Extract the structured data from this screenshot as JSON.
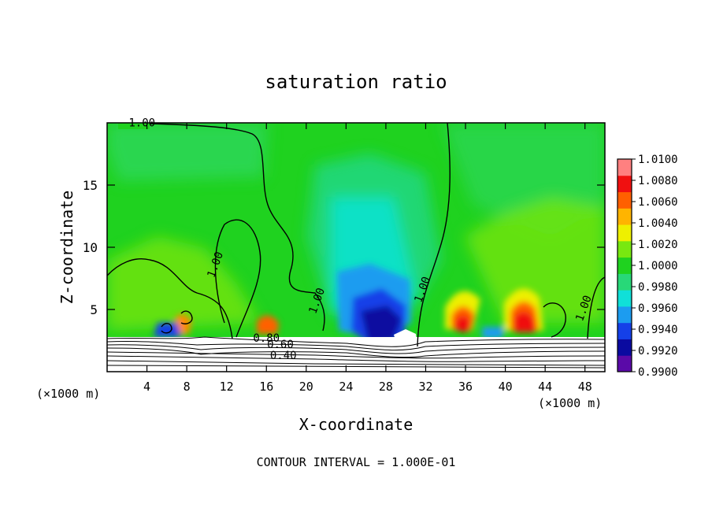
{
  "chart_data": {
    "type": "heatmap",
    "title": "saturation ratio",
    "xlabel": "X-coordinate",
    "ylabel": "Z-coordinate",
    "x_unit_left": "(×1000 m)",
    "x_unit_right": "(×1000 m)",
    "xlim": [
      0,
      50
    ],
    "ylim": [
      0,
      20
    ],
    "x_ticks": [
      4,
      8,
      12,
      16,
      20,
      24,
      28,
      32,
      36,
      40,
      44,
      48
    ],
    "y_ticks": [
      5,
      10,
      15
    ],
    "grid": false,
    "colorbar": {
      "placement": "right",
      "levels": [
        0.99,
        0.992,
        0.994,
        0.996,
        0.998,
        1.0,
        1.002,
        1.004,
        1.006,
        1.008,
        1.01
      ],
      "labels": [
        "0.9900",
        "0.9920",
        "0.9940",
        "0.9960",
        "0.9980",
        "1.0000",
        "1.0020",
        "1.0040",
        "1.0060",
        "1.0080",
        "1.0100"
      ],
      "colors": [
        "#5a0aa8",
        "#0a0aa0",
        "#1540e8",
        "#1c9cf0",
        "#10e0d8",
        "#28d878",
        "#1fd21f",
        "#78e810",
        "#eef000",
        "#ffb400",
        "#ff6000",
        "#f01010",
        "#ff8080"
      ]
    },
    "contour_interval": "CONTOUR INTERVAL = 1.000E-01",
    "contour_labels": [
      {
        "text": "1.00",
        "x": 3.5,
        "z": 19.7
      },
      {
        "text": "1.00",
        "x": 11.2,
        "z": 8.5
      },
      {
        "text": "1.00",
        "x": 21.4,
        "z": 5.6
      },
      {
        "text": "1.00",
        "x": 32.0,
        "z": 6.5
      },
      {
        "text": "1.00",
        "x": 48.2,
        "z": 5.0
      },
      {
        "text": "0.80",
        "x": 16.0,
        "z": 2.4
      },
      {
        "text": "0.60",
        "x": 17.4,
        "z": 1.9
      },
      {
        "text": "0.40",
        "x": 17.7,
        "z": 1.0
      }
    ]
  }
}
